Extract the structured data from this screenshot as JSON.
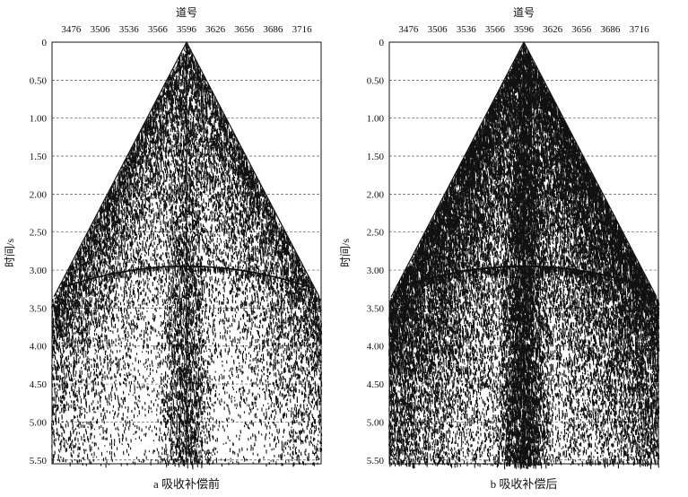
{
  "panels": [
    {
      "id": "a",
      "caption": "a  吸收补偿前",
      "x_title": "道号",
      "y_title": "时间/s",
      "x_ticks": [
        "3476",
        "3506",
        "3536",
        "3566",
        "3596",
        "3626",
        "3656",
        "3686",
        "3716"
      ],
      "y_ticks": [
        "0",
        "0.50",
        "1.00",
        "1.50",
        "2.00",
        "2.50",
        "3.00",
        "3.50",
        "4.00",
        "4.50",
        "5.00",
        "5.50"
      ],
      "amplitude_strength": 0.55
    },
    {
      "id": "b",
      "caption": "b  吸收补偿后",
      "x_title": "道号",
      "y_title": "时间/s",
      "x_ticks": [
        "3476",
        "3506",
        "3536",
        "3566",
        "3596",
        "3626",
        "3656",
        "3686",
        "3716"
      ],
      "y_ticks": [
        "0",
        "0.50",
        "1.00",
        "1.50",
        "2.00",
        "2.50",
        "3.00",
        "3.50",
        "4.00",
        "4.50",
        "5.00",
        "5.50"
      ],
      "amplitude_strength": 1.0
    }
  ],
  "gather": {
    "trace_first": 3456,
    "trace_last": 3736,
    "source_trace": 3596,
    "time_min": 0,
    "time_max": 5.55,
    "tick_trace_values": [
      3476,
      3506,
      3536,
      3566,
      3596,
      3626,
      3656,
      3686,
      3716
    ],
    "tick_time_values": [
      0,
      0.5,
      1.0,
      1.5,
      2.0,
      2.5,
      3.0,
      3.5,
      4.0,
      4.5,
      5.0,
      5.5
    ],
    "reflector_time": 2.95
  },
  "colors": {
    "ink": "#111111",
    "grid": "#555555",
    "background": "#ffffff"
  }
}
